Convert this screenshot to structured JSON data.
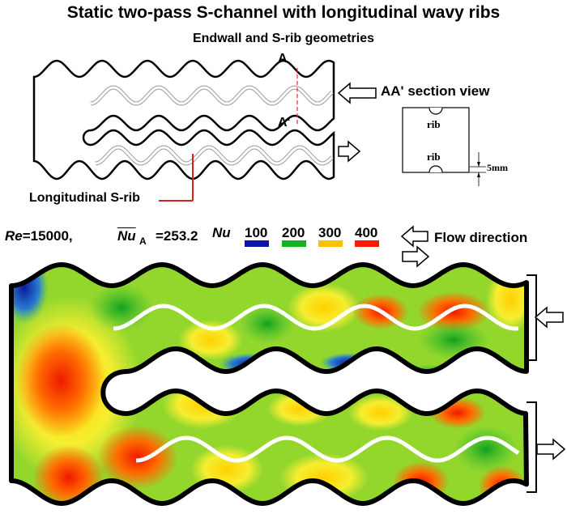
{
  "header": {
    "title": "Static two-pass S-channel with longitudinal wavy ribs",
    "subtitle": "Endwall and S-rib geometries"
  },
  "schematic": {
    "section_marker_top": "A",
    "section_marker_bottom": "A'",
    "section_view_label": "AA' section view",
    "rib_callout": "Longitudinal S-rib"
  },
  "section_view": {
    "rib_top_label": "rib",
    "rib_bottom_label": "rib",
    "dimension_label": "5mm"
  },
  "conditions": {
    "re_symbol": "Re",
    "re_value": "=15000,",
    "nu_symbol": "Nu",
    "nu_subscript": "A",
    "nu_value": "=253.2"
  },
  "legend": {
    "title": "Nu",
    "items": [
      {
        "label": "100",
        "color": "#0a14a8"
      },
      {
        "label": "200",
        "color": "#12b41e"
      },
      {
        "label": "300",
        "color": "#ffc000"
      },
      {
        "label": "400",
        "color": "#ff1a00"
      }
    ]
  },
  "flow": {
    "label": "Flow direction"
  }
}
